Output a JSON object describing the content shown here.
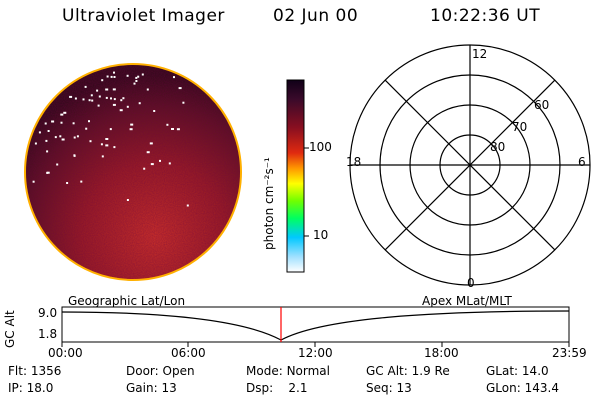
{
  "header": {
    "title": "Ultraviolet Imager",
    "date": "02 Jun 00",
    "time": "10:22:36 UT"
  },
  "colorbar": {
    "label": "photon cm⁻²s⁻¹",
    "ticks": [
      {
        "label": "100",
        "value": 100
      },
      {
        "label": "10",
        "value": 10
      }
    ]
  },
  "polar": {
    "lat_labels": [
      "60",
      "70",
      "80"
    ],
    "mlt_labels": {
      "top": "12",
      "left": "18",
      "right": "6",
      "bottom": "0"
    }
  },
  "orbit": {
    "y_axis_label": "GC Alt",
    "y_ticks": [
      "9.0",
      "1.8"
    ],
    "left_caption": "Geographic Lat/Lon",
    "right_caption": "Apex MLat/MLT",
    "x_ticks": [
      "00:00",
      "06:00",
      "12:00",
      "18:00",
      "23:59"
    ],
    "current_time_marker": "10:22:36"
  },
  "info": {
    "row1": [
      {
        "label": "Flt:",
        "value": "1356"
      },
      {
        "label": "Door:",
        "value": "Open"
      },
      {
        "label": "Mode:",
        "value": "Normal"
      },
      {
        "label": "GC Alt:",
        "value": "1.9 Re"
      },
      {
        "label": "GLat:",
        "value": "14.0"
      }
    ],
    "row2": [
      {
        "label": "IP:",
        "value": "18.0"
      },
      {
        "label": "Gain:",
        "value": "13"
      },
      {
        "label": "Dsp:",
        "value": "2.1"
      },
      {
        "label": "Seq:",
        "value": "13"
      },
      {
        "label": "GLon:",
        "value": "143.4"
      }
    ]
  },
  "colors": {
    "accent": "#ff0000",
    "disk_dark": "#3a0f1a",
    "disk_bright": "#d02820"
  }
}
